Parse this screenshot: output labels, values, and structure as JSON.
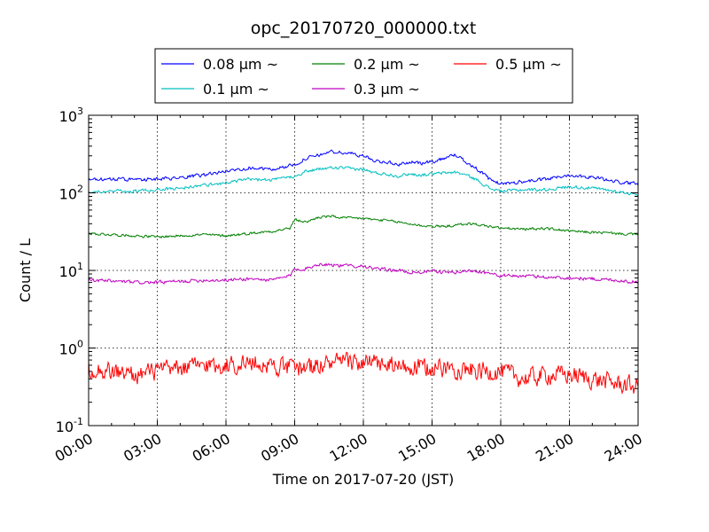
{
  "chart_data": {
    "type": "line",
    "title": "opc_20170720_000000.txt",
    "xlabel": "Time on 2017-07-20 (JST)",
    "ylabel": "Count / L",
    "x_unit": "hours (JST)",
    "xlim": [
      0,
      24
    ],
    "ylim": [
      0.1,
      1000
    ],
    "yscale": "log",
    "grid": true,
    "legend_placement": "top-center",
    "x_ticks": [
      "00:00",
      "03:00",
      "06:00",
      "09:00",
      "12:00",
      "15:00",
      "18:00",
      "21:00",
      "24:00"
    ],
    "y_ticks": [
      {
        "value": 1000,
        "base": "10",
        "exp": "3"
      },
      {
        "value": 100,
        "base": "10",
        "exp": "2"
      },
      {
        "value": 10,
        "base": "10",
        "exp": "1"
      },
      {
        "value": 1,
        "base": "10",
        "exp": "0"
      },
      {
        "value": 0.1,
        "base": "10",
        "exp": "-1"
      }
    ],
    "series": [
      {
        "name": "0.08 μm ~",
        "color": "#0000ff",
        "noise": 0.02,
        "x": [
          0,
          1,
          2,
          3,
          4,
          5,
          6,
          7,
          8,
          9,
          9.5,
          10,
          10.5,
          11,
          11.5,
          12,
          12.5,
          13,
          13.5,
          14,
          14.5,
          15,
          15.5,
          16,
          16.5,
          17,
          17.5,
          18,
          19,
          20,
          21,
          22,
          23,
          24
        ],
        "y": [
          145,
          150,
          148,
          150,
          155,
          170,
          190,
          210,
          200,
          230,
          280,
          300,
          340,
          330,
          320,
          300,
          260,
          250,
          230,
          250,
          240,
          250,
          280,
          310,
          250,
          200,
          150,
          130,
          140,
          150,
          170,
          160,
          140,
          130
        ]
      },
      {
        "name": "0.1 μm ~",
        "color": "#00bfbf",
        "noise": 0.018,
        "x": [
          0,
          1,
          2,
          3,
          4,
          5,
          6,
          7,
          8,
          9,
          9.5,
          10,
          10.5,
          11,
          11.5,
          12,
          12.5,
          13,
          13.5,
          14,
          14.5,
          15,
          15.5,
          16,
          16.5,
          17,
          17.5,
          18,
          19,
          20,
          21,
          22,
          23,
          24
        ],
        "y": [
          105,
          105,
          105,
          110,
          115,
          125,
          135,
          150,
          145,
          165,
          190,
          200,
          210,
          210,
          205,
          200,
          180,
          175,
          165,
          175,
          170,
          175,
          180,
          185,
          170,
          145,
          115,
          105,
          110,
          110,
          120,
          115,
          105,
          95
        ]
      },
      {
        "name": "0.2 μm ~",
        "color": "#008000",
        "noise": 0.015,
        "x": [
          0,
          1,
          2,
          3,
          4,
          5,
          6,
          7,
          8,
          8.8,
          9,
          9.5,
          10,
          10.5,
          11,
          11.5,
          12,
          12.5,
          13,
          13.5,
          14,
          14.5,
          15,
          15.5,
          16,
          16.5,
          17,
          17.5,
          18,
          19,
          20,
          21,
          22,
          23,
          24
        ],
        "y": [
          30,
          29,
          28,
          27,
          28,
          29,
          28,
          30,
          32,
          35,
          45,
          42,
          48,
          50,
          48,
          47,
          47,
          45,
          44,
          42,
          40,
          38,
          37,
          37,
          38,
          40,
          39,
          37,
          35,
          34,
          35,
          32,
          31,
          30,
          29
        ]
      },
      {
        "name": "0.3 μm ~",
        "color": "#bf00bf",
        "noise": 0.02,
        "x": [
          0,
          1,
          2,
          3,
          4,
          5,
          6,
          7,
          8,
          8.8,
          9,
          9.5,
          10,
          10.5,
          11,
          11.5,
          12,
          12.5,
          13,
          13.5,
          14,
          14.5,
          15,
          15.5,
          16,
          16.5,
          17,
          17.5,
          18,
          19,
          20,
          21,
          22,
          23,
          24
        ],
        "y": [
          7.5,
          7.3,
          7.0,
          7.0,
          7.2,
          7.5,
          7.5,
          7.8,
          7.5,
          8.5,
          10.5,
          10.5,
          12,
          12,
          11.5,
          11.5,
          11.5,
          10.5,
          10.2,
          10,
          9.5,
          9.5,
          9.8,
          9.5,
          9.5,
          9.8,
          9.8,
          9.2,
          8.5,
          8.5,
          8.2,
          8.0,
          7.8,
          7.5,
          7.0
        ]
      },
      {
        "name": "0.5 μm ~",
        "color": "#ff0000",
        "noise": 0.11,
        "x": [
          0,
          1,
          2,
          3,
          4,
          5,
          6,
          7,
          8,
          9,
          10,
          11,
          12,
          13,
          14,
          15,
          16,
          17,
          18,
          19,
          20,
          21,
          22,
          23,
          24
        ],
        "y": [
          0.55,
          0.5,
          0.45,
          0.5,
          0.55,
          0.6,
          0.6,
          0.65,
          0.6,
          0.55,
          0.6,
          0.65,
          0.65,
          0.6,
          0.55,
          0.55,
          0.55,
          0.5,
          0.5,
          0.4,
          0.45,
          0.45,
          0.4,
          0.35,
          0.32
        ]
      }
    ]
  }
}
